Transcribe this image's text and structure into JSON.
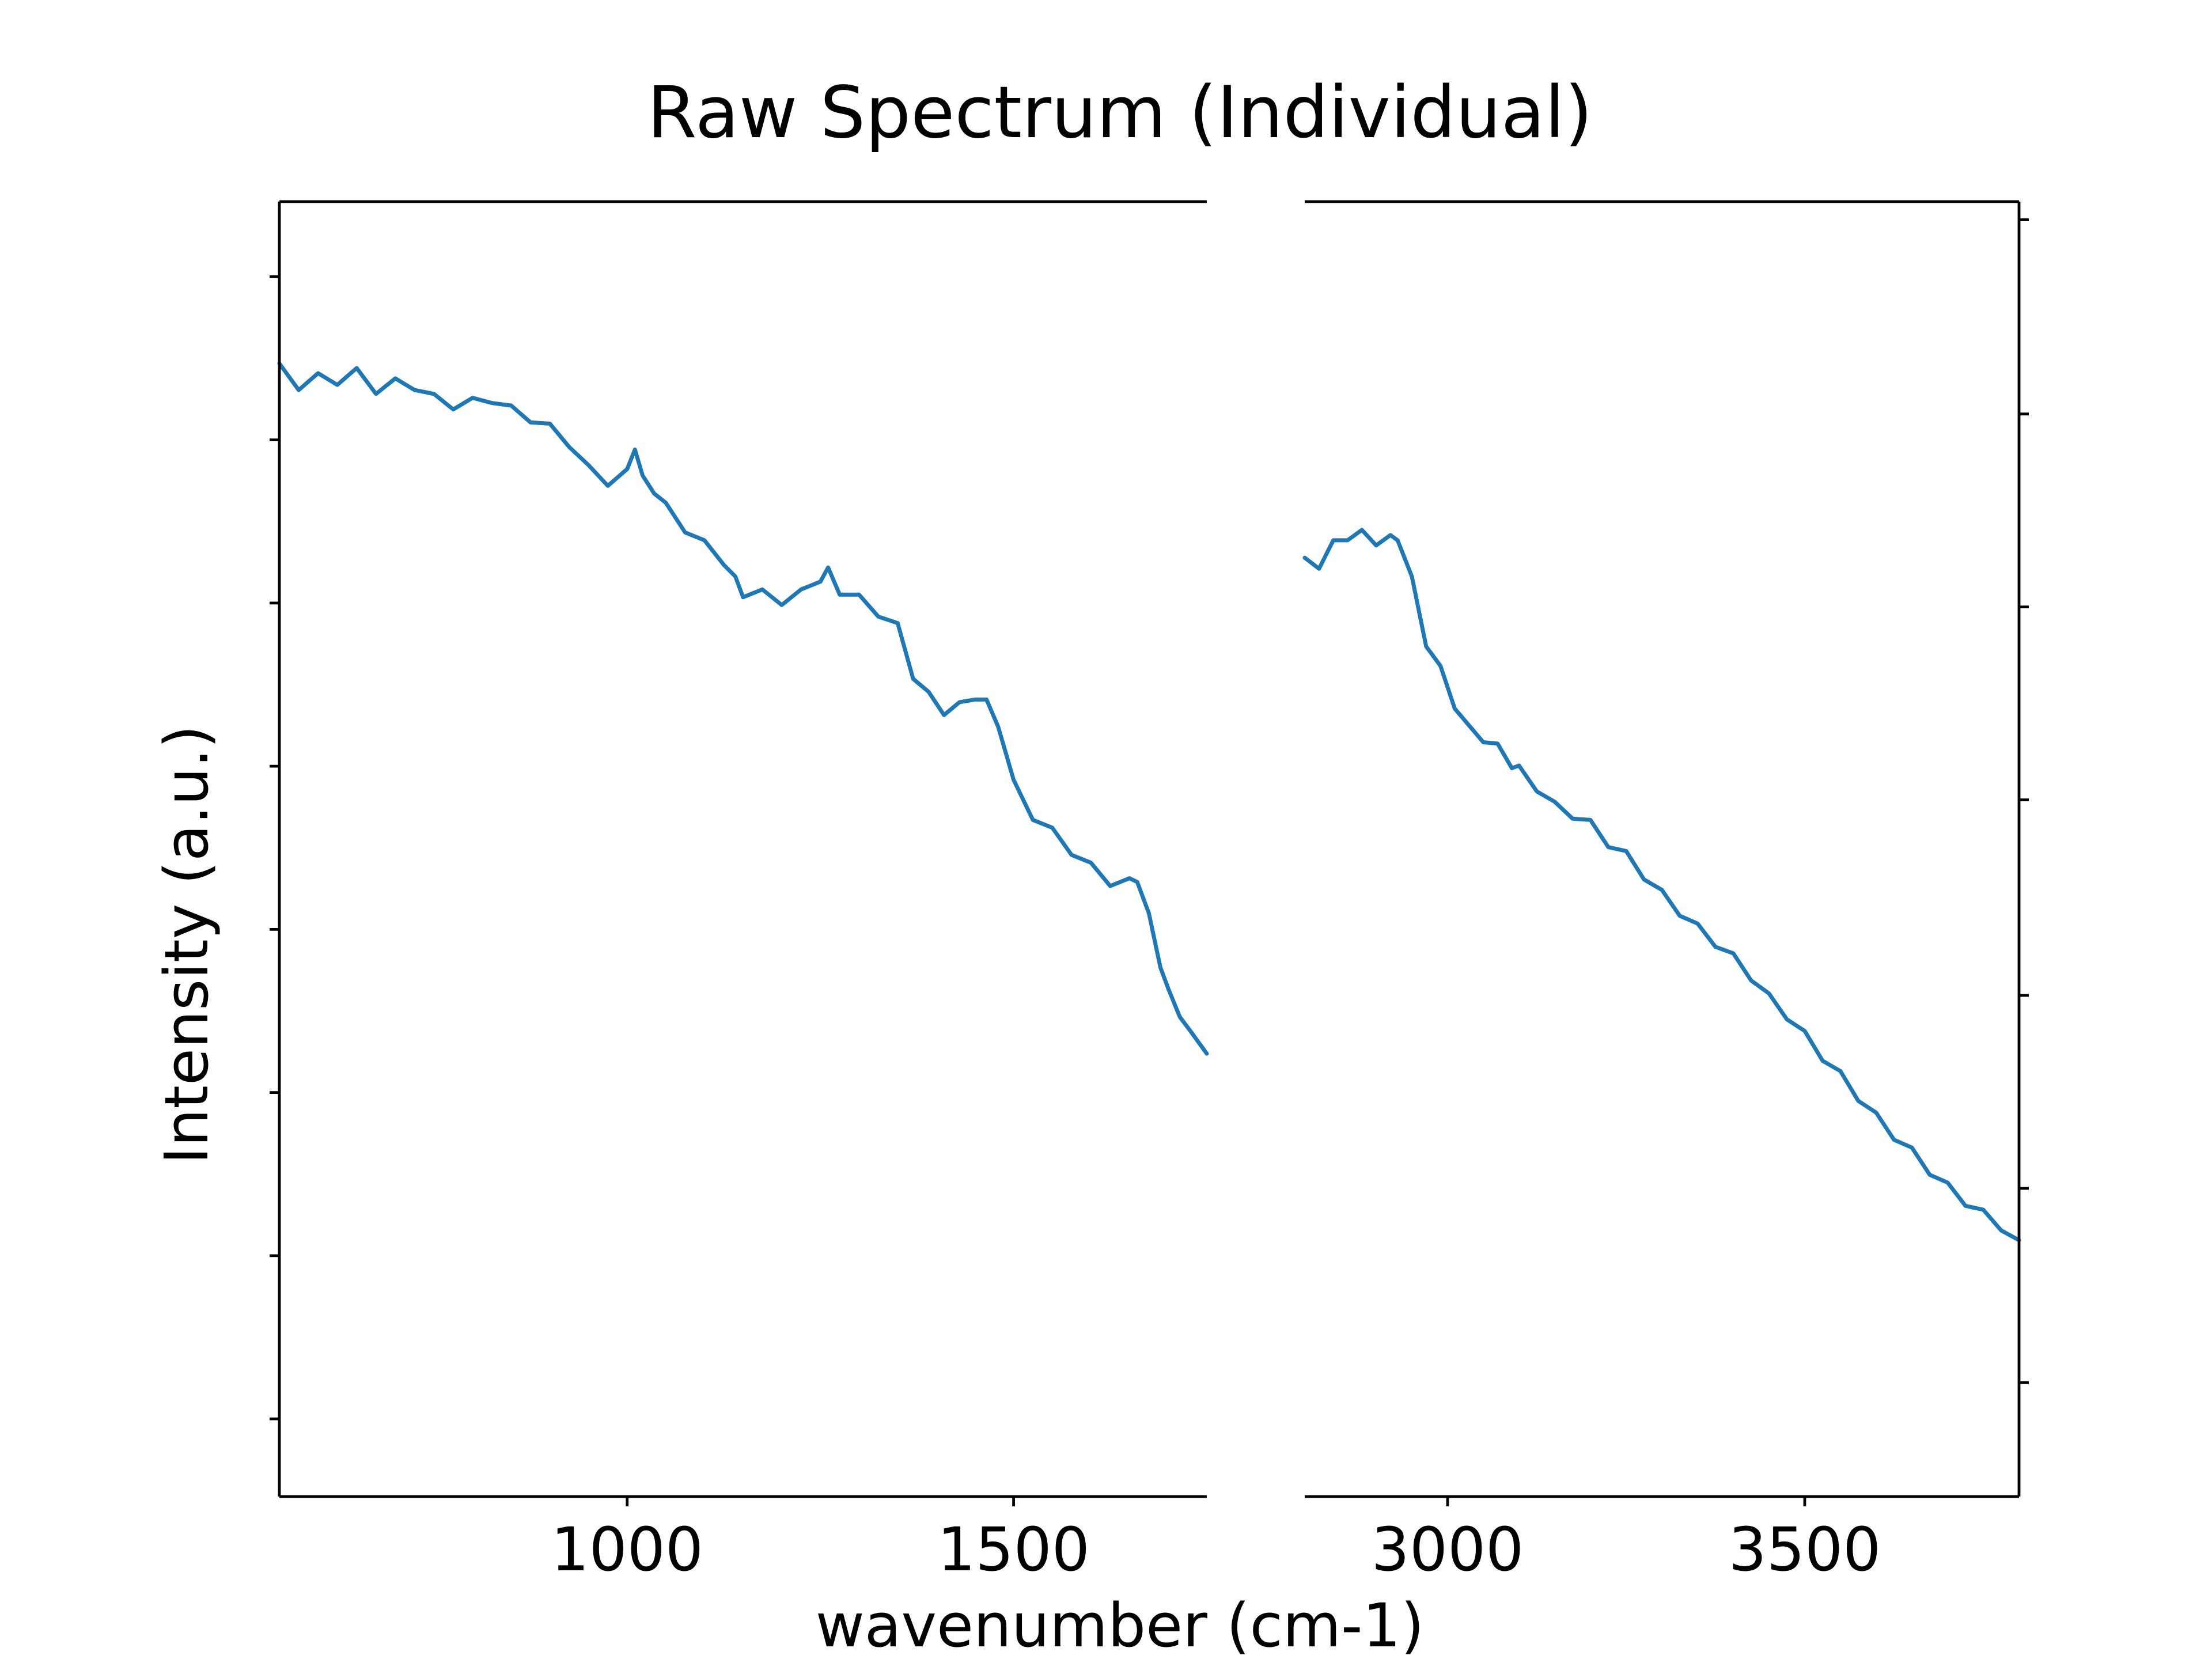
{
  "chart_data": {
    "type": "line",
    "title": "Raw Spectrum (Individual)",
    "xlabel": "wavenumber (cm-1)",
    "ylabel": "Intensity (a.u.)",
    "legend": "none",
    "grid": false,
    "colors": {
      "series": "#1f77b4",
      "axes": "#000000",
      "background": "#ffffff"
    },
    "panels": [
      {
        "name": "left-panel",
        "xlim": [
          550,
          1750
        ],
        "ylim": [
          0,
          100
        ],
        "xticks": [
          1000,
          1500
        ],
        "xtick_labels": [
          "1000",
          "1500"
        ],
        "ytick_values": [
          6,
          18.6,
          31.2,
          43.8,
          56.4,
          69,
          81.6,
          94.2
        ],
        "ytick_side": "left",
        "series": [
          {
            "x": [
              550,
              575,
              600,
              625,
              650,
              675,
              700,
              725,
              750,
              775,
              800,
              825,
              850,
              875,
              900,
              925,
              950,
              975,
              1000,
              1010,
              1020,
              1035,
              1050,
              1075,
              1100,
              1125,
              1140,
              1150,
              1175,
              1200,
              1225,
              1250,
              1260,
              1275,
              1300,
              1325,
              1350,
              1370,
              1390,
              1410,
              1430,
              1450,
              1465,
              1480,
              1500,
              1525,
              1550,
              1575,
              1600,
              1625,
              1650,
              1660,
              1675,
              1690,
              1700,
              1715,
              1730,
              1750
            ],
            "y": [
              87.5,
              85.8,
              86.4,
              86.2,
              86.8,
              85.5,
              86.0,
              85.8,
              84.8,
              84.3,
              84.5,
              84.8,
              83.9,
              83.3,
              82.5,
              81.4,
              79.3,
              78.4,
              79.0,
              81.2,
              78.5,
              77.8,
              76.4,
              74.8,
              73.5,
              72.3,
              70.7,
              69.8,
              69.7,
              69.2,
              69.7,
              71.0,
              71.4,
              70.0,
              69.3,
              68.3,
              67.1,
              63.5,
              61.8,
              60.7,
              61.0,
              61.9,
              61.2,
              59.8,
              55.0,
              52.6,
              51.3,
              49.9,
              48.6,
              47.5,
              47.4,
              47.8,
              44.7,
              41.2,
              38.9,
              37.4,
              35.5,
              34.2
            ]
          }
        ]
      },
      {
        "name": "right-panel",
        "xlim": [
          2800,
          3800
        ],
        "ylim": [
          0,
          100
        ],
        "xticks": [
          3000,
          3500
        ],
        "xtick_labels": [
          "3000",
          "3500"
        ],
        "ytick_values": [
          8.8,
          23.8,
          38.7,
          53.8,
          68.7,
          83.6,
          98.6
        ],
        "ytick_side": "right",
        "series": [
          {
            "x": [
              2800,
              2820,
              2840,
              2860,
              2880,
              2900,
              2920,
              2930,
              2950,
              2970,
              2990,
              3010,
              3030,
              3050,
              3070,
              3090,
              3100,
              3125,
              3150,
              3175,
              3200,
              3225,
              3250,
              3275,
              3300,
              3325,
              3350,
              3375,
              3400,
              3425,
              3450,
              3475,
              3500,
              3525,
              3550,
              3575,
              3600,
              3625,
              3650,
              3675,
              3700,
              3725,
              3750,
              3775,
              3800
            ],
            "y": [
              72.5,
              72.0,
              73.5,
              74.2,
              74.3,
              73.8,
              73.9,
              74.2,
              70.7,
              66.0,
              63.8,
              61.2,
              59.2,
              58.6,
              57.8,
              56.6,
              56.1,
              54.8,
              53.3,
              52.7,
              51.9,
              50.5,
              49.5,
              48.0,
              46.5,
              45.2,
              43.9,
              42.8,
              41.6,
              40.2,
              38.5,
              37.2,
              35.6,
              34.0,
              32.5,
              30.9,
              29.3,
              27.9,
              26.6,
              25.2,
              23.9,
              22.8,
              21.8,
              20.9,
              19.8
            ]
          }
        ]
      }
    ]
  }
}
